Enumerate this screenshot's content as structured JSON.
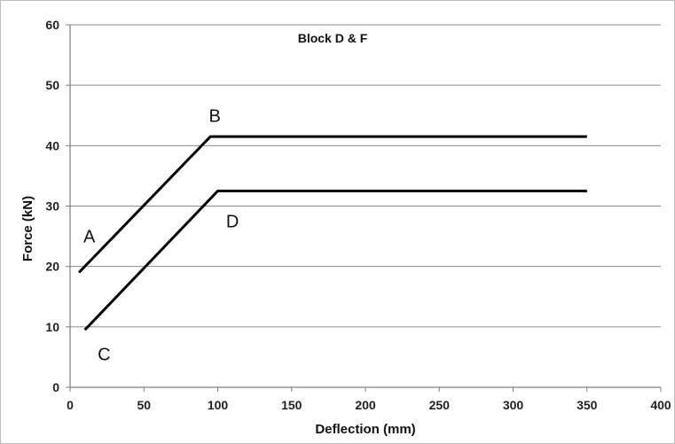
{
  "chart_data": {
    "type": "line",
    "title": "Block D & F",
    "xlabel": "Deflection (mm)",
    "ylabel": "Force (kN)",
    "xlim": [
      0,
      400
    ],
    "ylim": [
      0,
      60
    ],
    "xticks": [
      0,
      50,
      100,
      150,
      200,
      250,
      300,
      350,
      400
    ],
    "yticks": [
      0,
      10,
      20,
      30,
      40,
      50,
      60
    ],
    "grid": "horizontal",
    "legend": "none",
    "series": [
      {
        "points": [
          [
            6,
            19
          ],
          [
            95,
            41.5
          ],
          [
            350,
            41.5
          ]
        ],
        "color": "#000000"
      },
      {
        "points": [
          [
            10,
            9.5
          ],
          [
            100,
            32.5
          ],
          [
            350,
            32.5
          ]
        ],
        "color": "#000000"
      }
    ],
    "annotations": [
      {
        "text": "A",
        "x": 13,
        "y": 25
      },
      {
        "text": "B",
        "x": 98,
        "y": 45
      },
      {
        "text": "C",
        "x": 23,
        "y": 5.5
      },
      {
        "text": "D",
        "x": 110,
        "y": 27.5
      }
    ]
  }
}
